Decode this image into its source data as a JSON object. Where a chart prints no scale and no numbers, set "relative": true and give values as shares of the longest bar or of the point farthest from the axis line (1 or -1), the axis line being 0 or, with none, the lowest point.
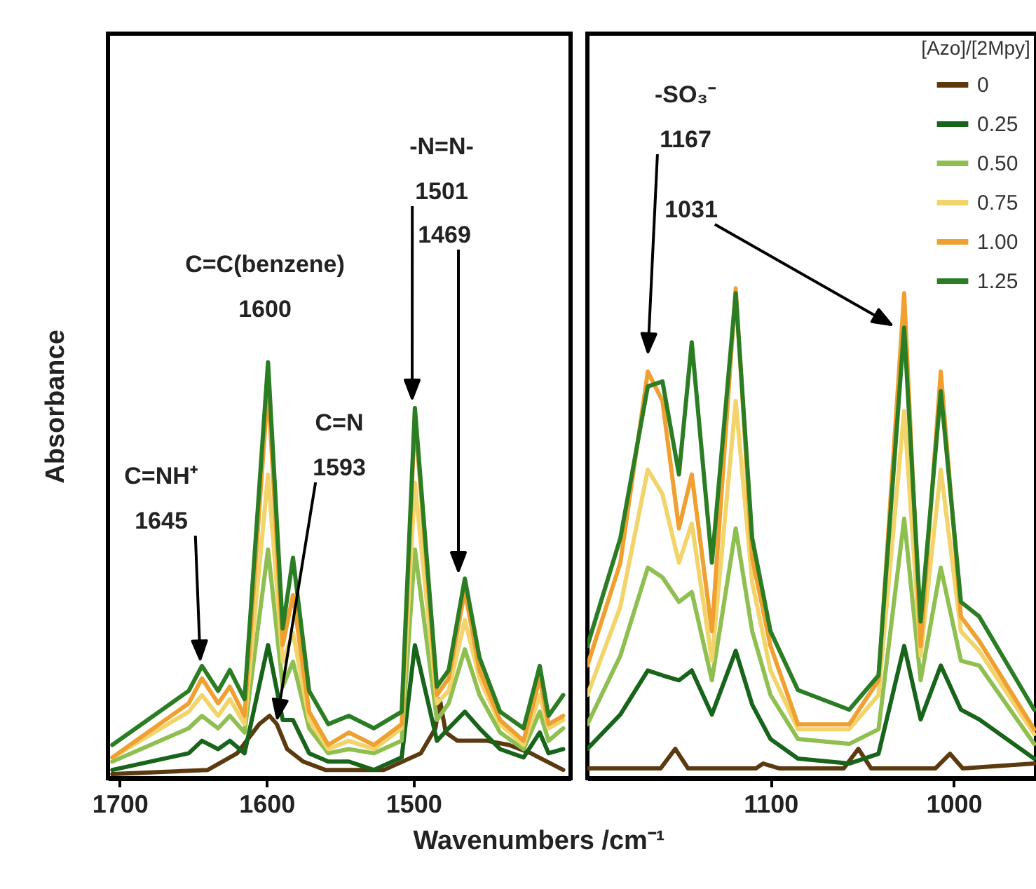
{
  "chart_data": [
    {
      "type": "line",
      "relative": true,
      "xlim": [
        1708,
        1393
      ],
      "xticks": [
        1700,
        1600,
        1500
      ],
      "ylabel": "Absorbance",
      "xlabel": "Wavenumbers /cm⁻¹",
      "series": [
        {
          "color": "#5c3a10",
          "x": [
            1705,
            1640,
            1620,
            1605,
            1598,
            1593,
            1586,
            1575,
            1560,
            1520,
            1495,
            1485,
            1482,
            1478,
            1470,
            1450,
            1435,
            1420,
            1398
          ],
          "values": [
            0.01,
            0.02,
            0.06,
            0.13,
            0.15,
            0.13,
            0.07,
            0.04,
            0.02,
            0.02,
            0.06,
            0.12,
            0.19,
            0.11,
            0.09,
            0.09,
            0.08,
            0.06,
            0.02
          ]
        },
        {
          "color": "#17641a",
          "x": [
            1705,
            1653,
            1644,
            1633,
            1625,
            1615,
            1599,
            1589,
            1582,
            1571,
            1558,
            1544,
            1527,
            1508,
            1499,
            1484,
            1476,
            1465,
            1455,
            1441,
            1425,
            1414,
            1408,
            1398
          ],
          "values": [
            0.02,
            0.06,
            0.09,
            0.07,
            0.09,
            0.06,
            0.32,
            0.14,
            0.14,
            0.06,
            0.04,
            0.04,
            0.02,
            0.05,
            0.32,
            0.09,
            0.12,
            0.16,
            0.12,
            0.07,
            0.05,
            0.11,
            0.06,
            0.07
          ]
        },
        {
          "color": "#8fbf50",
          "x": [
            1705,
            1653,
            1644,
            1633,
            1625,
            1615,
            1599,
            1589,
            1582,
            1571,
            1558,
            1544,
            1527,
            1508,
            1499,
            1484,
            1476,
            1465,
            1455,
            1441,
            1425,
            1414,
            1408,
            1398
          ],
          "values": [
            0.04,
            0.12,
            0.15,
            0.12,
            0.15,
            0.11,
            0.55,
            0.22,
            0.28,
            0.12,
            0.06,
            0.07,
            0.06,
            0.09,
            0.55,
            0.14,
            0.18,
            0.31,
            0.2,
            0.11,
            0.07,
            0.16,
            0.09,
            0.12
          ]
        },
        {
          "color": "#f2d46a",
          "x": [
            1705,
            1653,
            1644,
            1633,
            1625,
            1615,
            1599,
            1589,
            1582,
            1571,
            1558,
            1544,
            1527,
            1508,
            1499,
            1484,
            1476,
            1465,
            1455,
            1441,
            1425,
            1414,
            1408,
            1398
          ],
          "values": [
            0.05,
            0.16,
            0.2,
            0.15,
            0.19,
            0.13,
            0.73,
            0.28,
            0.35,
            0.14,
            0.07,
            0.09,
            0.07,
            0.12,
            0.71,
            0.18,
            0.21,
            0.38,
            0.24,
            0.13,
            0.08,
            0.2,
            0.12,
            0.14
          ]
        },
        {
          "color": "#f0a030",
          "x": [
            1705,
            1653,
            1644,
            1633,
            1625,
            1615,
            1599,
            1589,
            1582,
            1571,
            1558,
            1544,
            1527,
            1508,
            1499,
            1484,
            1476,
            1465,
            1455,
            1441,
            1425,
            1414,
            1408,
            1398
          ],
          "values": [
            0.05,
            0.18,
            0.24,
            0.18,
            0.22,
            0.15,
            0.94,
            0.32,
            0.44,
            0.16,
            0.08,
            0.11,
            0.08,
            0.13,
            0.87,
            0.2,
            0.24,
            0.45,
            0.26,
            0.14,
            0.09,
            0.24,
            0.13,
            0.15
          ]
        },
        {
          "color": "#2b7d23",
          "x": [
            1705,
            1653,
            1644,
            1633,
            1625,
            1615,
            1599,
            1589,
            1582,
            1571,
            1558,
            1544,
            1527,
            1508,
            1499,
            1484,
            1476,
            1465,
            1455,
            1441,
            1425,
            1414,
            1408,
            1398
          ],
          "values": [
            0.08,
            0.21,
            0.27,
            0.21,
            0.26,
            0.19,
            1.0,
            0.36,
            0.53,
            0.21,
            0.13,
            0.15,
            0.12,
            0.16,
            0.89,
            0.22,
            0.26,
            0.48,
            0.29,
            0.16,
            0.12,
            0.27,
            0.15,
            0.2
          ]
        }
      ],
      "annotations": [
        "C=NH⁺\n1645",
        "C=N\n1593",
        "C=C(benzene)\n1600",
        "-N=N-\n1501",
        "1469"
      ]
    },
    {
      "type": "line",
      "relative": true,
      "xlim": [
        1200,
        955
      ],
      "xticks": [
        1100,
        1000
      ],
      "legend": "top right",
      "legend_title": "[Azo]/[2Mpy]",
      "series": [
        {
          "name": "0",
          "color": "#5c3a10",
          "x": [
            1200,
            1160,
            1152,
            1145,
            1108,
            1104,
            1095,
            1060,
            1052,
            1045,
            1010,
            1002,
            995,
            956
          ],
          "values": [
            0.02,
            0.02,
            0.06,
            0.02,
            0.02,
            0.03,
            0.02,
            0.02,
            0.06,
            0.02,
            0.02,
            0.05,
            0.02,
            0.03
          ]
        },
        {
          "name": "0.25",
          "color": "#17641a",
          "x": [
            1200,
            1182,
            1167,
            1159,
            1150,
            1143,
            1132,
            1119,
            1110,
            1100,
            1085,
            1057,
            1041,
            1027,
            1018,
            1007,
            996,
            986,
            956
          ],
          "values": [
            0.06,
            0.13,
            0.22,
            0.21,
            0.2,
            0.22,
            0.13,
            0.26,
            0.15,
            0.08,
            0.04,
            0.03,
            0.05,
            0.27,
            0.12,
            0.23,
            0.14,
            0.12,
            0.04
          ]
        },
        {
          "name": "0.50",
          "color": "#8fbf50",
          "x": [
            1200,
            1182,
            1167,
            1159,
            1150,
            1143,
            1132,
            1119,
            1110,
            1100,
            1085,
            1057,
            1041,
            1027,
            1018,
            1007,
            996,
            986,
            956
          ],
          "values": [
            0.11,
            0.25,
            0.43,
            0.41,
            0.36,
            0.38,
            0.2,
            0.51,
            0.3,
            0.17,
            0.08,
            0.07,
            0.1,
            0.53,
            0.2,
            0.43,
            0.24,
            0.23,
            0.07
          ]
        },
        {
          "name": "0.75",
          "color": "#f2d46a",
          "x": [
            1200,
            1182,
            1167,
            1159,
            1150,
            1143,
            1132,
            1119,
            1110,
            1100,
            1085,
            1057,
            1041,
            1027,
            1018,
            1007,
            996,
            986,
            956
          ],
          "values": [
            0.17,
            0.35,
            0.63,
            0.58,
            0.44,
            0.52,
            0.24,
            0.77,
            0.4,
            0.22,
            0.1,
            0.1,
            0.17,
            0.75,
            0.25,
            0.63,
            0.3,
            0.26,
            0.09
          ]
        },
        {
          "name": "1.00",
          "color": "#f0a030",
          "x": [
            1200,
            1182,
            1167,
            1159,
            1150,
            1143,
            1132,
            1119,
            1110,
            1100,
            1085,
            1057,
            1041,
            1027,
            1018,
            1007,
            996,
            986,
            956
          ],
          "values": [
            0.23,
            0.44,
            0.83,
            0.77,
            0.51,
            0.62,
            0.3,
            1.0,
            0.45,
            0.27,
            0.11,
            0.11,
            0.2,
            0.99,
            0.27,
            0.83,
            0.33,
            0.28,
            0.1
          ]
        },
        {
          "name": "1.25",
          "color": "#2b7d23",
          "x": [
            1200,
            1182,
            1167,
            1159,
            1150,
            1143,
            1132,
            1119,
            1110,
            1100,
            1085,
            1057,
            1041,
            1027,
            1018,
            1007,
            996,
            986,
            956
          ],
          "values": [
            0.27,
            0.49,
            0.8,
            0.81,
            0.62,
            0.89,
            0.44,
            0.99,
            0.49,
            0.3,
            0.18,
            0.14,
            0.21,
            0.92,
            0.32,
            0.79,
            0.36,
            0.33,
            0.14
          ]
        }
      ],
      "annotations": [
        "-SO₃⁻\n1167",
        "1031"
      ]
    }
  ]
}
